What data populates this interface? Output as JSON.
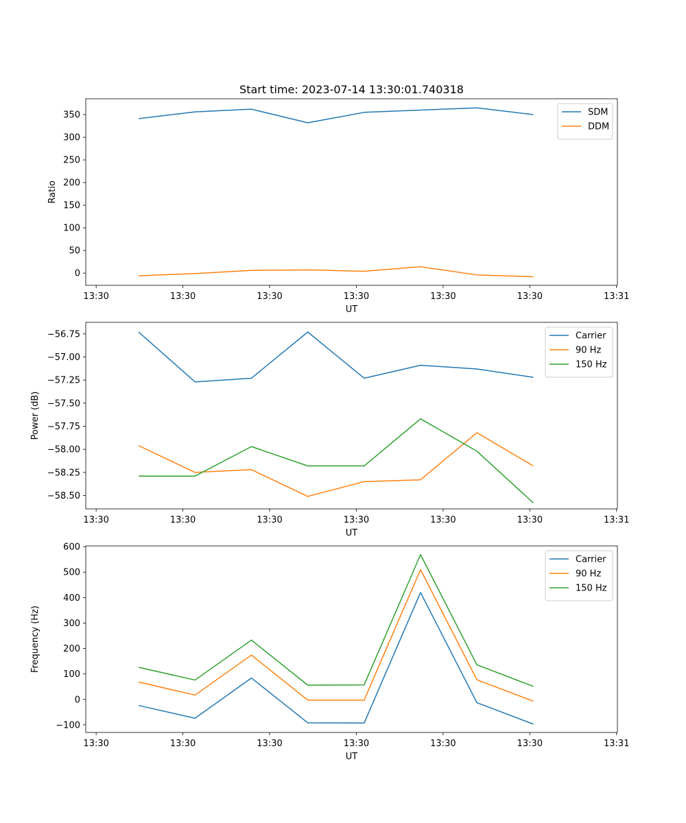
{
  "chart_data": [
    {
      "type": "line",
      "title": "Start time: 2023-07-14 13:30:01.740318",
      "xlabel": "UT",
      "ylabel": "Ratio",
      "x_tick_labels": [
        "13:30",
        "13:30",
        "13:30",
        "13:30",
        "13:30",
        "13:30",
        "13:31"
      ],
      "x_ticks": [
        0,
        10,
        20,
        30,
        40,
        50,
        60
      ],
      "xlim": [
        -1.2,
        60.1
      ],
      "x": [
        4.9,
        11.4,
        17.9,
        24.4,
        30.9,
        37.4,
        43.9,
        50.4
      ],
      "ylim": [
        -27,
        385
      ],
      "y_ticks": [
        0,
        50,
        100,
        150,
        200,
        250,
        300,
        350
      ],
      "y_tick_labels": [
        "0",
        "50",
        "100",
        "150",
        "200",
        "250",
        "300",
        "350"
      ],
      "legend": "top-right",
      "series": [
        {
          "name": "SDM",
          "color": "#1f77b4",
          "values": [
            341,
            356,
            362,
            332,
            355,
            360,
            365,
            350
          ]
        },
        {
          "name": "DDM",
          "color": "#ff7f0e",
          "values": [
            -6,
            -1,
            6,
            7,
            4,
            14,
            -4,
            -8
          ]
        }
      ]
    },
    {
      "type": "line",
      "title": "",
      "xlabel": "UT",
      "ylabel": "Power (dB)",
      "x_tick_labels": [
        "13:30",
        "13:30",
        "13:30",
        "13:30",
        "13:30",
        "13:30",
        "13:31"
      ],
      "x_ticks": [
        0,
        10,
        20,
        30,
        40,
        50,
        60
      ],
      "xlim": [
        -1.2,
        60.1
      ],
      "x": [
        4.9,
        11.4,
        17.9,
        24.4,
        30.9,
        37.4,
        43.9,
        50.4
      ],
      "ylim": [
        -58.645,
        -56.625
      ],
      "y_ticks": [
        -58.5,
        -58.25,
        -58.0,
        -57.75,
        -57.5,
        -57.25,
        -57.0,
        -56.75
      ],
      "y_tick_labels": [
        "−58.50",
        "−58.25",
        "−58.00",
        "−57.75",
        "−57.50",
        "−57.25",
        "−57.00",
        "−56.75"
      ],
      "legend": "top-right",
      "series": [
        {
          "name": "Carrier",
          "color": "#1f77b4",
          "values": [
            -56.73,
            -57.27,
            -57.23,
            -56.73,
            -57.23,
            -57.09,
            -57.13,
            -57.22
          ]
        },
        {
          "name": "90 Hz",
          "color": "#ff7f0e",
          "values": [
            -57.96,
            -58.25,
            -58.22,
            -58.51,
            -58.35,
            -58.33,
            -57.82,
            -58.18
          ]
        },
        {
          "name": "150 Hz",
          "color": "#2ca02c",
          "values": [
            -58.29,
            -58.29,
            -57.97,
            -58.18,
            -58.18,
            -57.67,
            -58.02,
            -58.58
          ]
        }
      ]
    },
    {
      "type": "line",
      "title": "",
      "xlabel": "UT",
      "ylabel": "Frequency (Hz)",
      "x_tick_labels": [
        "13:30",
        "13:30",
        "13:30",
        "13:30",
        "13:30",
        "13:30",
        "13:31"
      ],
      "x_ticks": [
        0,
        10,
        20,
        30,
        40,
        50,
        60
      ],
      "xlim": [
        -1.2,
        60.1
      ],
      "x": [
        4.9,
        11.4,
        17.9,
        24.4,
        30.9,
        37.4,
        43.9,
        50.4
      ],
      "ylim": [
        -130,
        603
      ],
      "y_ticks": [
        -100,
        0,
        100,
        200,
        300,
        400,
        500,
        600
      ],
      "y_tick_labels": [
        "−100",
        "0",
        "100",
        "200",
        "300",
        "400",
        "500",
        "600"
      ],
      "legend": "top-right",
      "series": [
        {
          "name": "Carrier",
          "color": "#1f77b4",
          "values": [
            -24,
            -74,
            84,
            -92,
            -93,
            420,
            -13,
            -97
          ]
        },
        {
          "name": "90 Hz",
          "color": "#ff7f0e",
          "values": [
            68,
            17,
            174,
            -3,
            -3,
            510,
            77,
            -7
          ]
        },
        {
          "name": "150 Hz",
          "color": "#2ca02c",
          "values": [
            126,
            76,
            233,
            56,
            57,
            569,
            136,
            51
          ]
        }
      ]
    }
  ]
}
